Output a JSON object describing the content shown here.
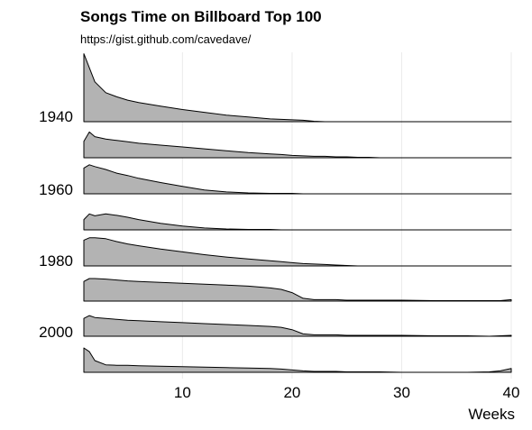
{
  "chart_data": {
    "type": "area",
    "subtype": "ridgeline-density",
    "title": "Songs Time on Billboard Top 100",
    "subtitle": "https://gist.github.com/cavedave/",
    "xlabel": "Weeks",
    "ylabel": "",
    "xlim": [
      1,
      40
    ],
    "x_ticks": [
      "10",
      "20",
      "30",
      "40"
    ],
    "y_tick_labels": [
      "1940",
      "1960",
      "1980",
      "2000"
    ],
    "grid": "vertical",
    "fill_color": "#b3b3b3",
    "line_color": "#000000",
    "x": [
      1,
      1.5,
      2,
      3,
      4,
      5,
      6,
      8,
      10,
      12,
      14,
      16,
      18,
      19,
      20,
      21,
      22,
      23,
      24,
      25,
      26,
      27,
      28,
      30,
      33,
      36,
      38,
      39,
      40
    ],
    "series": [
      {
        "values": [
          1.45,
          1.15,
          0.85,
          0.62,
          0.53,
          0.46,
          0.41,
          0.33,
          0.26,
          0.2,
          0.14,
          0.1,
          0.06,
          0.05,
          0.04,
          0.03,
          0.01,
          0.0,
          0,
          0,
          0,
          0,
          0,
          0,
          0,
          0,
          0,
          0,
          0
        ]
      },
      {
        "values": [
          0.35,
          0.55,
          0.45,
          0.4,
          0.37,
          0.34,
          0.31,
          0.27,
          0.23,
          0.19,
          0.15,
          0.11,
          0.08,
          0.07,
          0.05,
          0.04,
          0.03,
          0.03,
          0.02,
          0.02,
          0.01,
          0.01,
          0.0,
          0,
          0,
          0,
          0,
          0,
          0
        ]
      },
      {
        "values": [
          0.55,
          0.62,
          0.58,
          0.52,
          0.44,
          0.39,
          0.33,
          0.24,
          0.16,
          0.08,
          0.04,
          0.02,
          0.01,
          0.01,
          0.01,
          0.0,
          0,
          0,
          0,
          0,
          0,
          0,
          0,
          0,
          0,
          0,
          0,
          0,
          0
        ]
      },
      {
        "values": [
          0.22,
          0.34,
          0.3,
          0.34,
          0.31,
          0.27,
          0.22,
          0.14,
          0.08,
          0.04,
          0.02,
          0.01,
          0.01,
          0.0,
          0.0,
          0,
          0,
          0,
          0,
          0,
          0,
          0,
          0,
          0,
          0,
          0,
          0,
          0,
          0
        ]
      },
      {
        "values": [
          0.55,
          0.6,
          0.6,
          0.58,
          0.52,
          0.47,
          0.43,
          0.36,
          0.3,
          0.24,
          0.19,
          0.15,
          0.11,
          0.09,
          0.07,
          0.05,
          0.04,
          0.03,
          0.02,
          0.01,
          0.0,
          0,
          0,
          0,
          0,
          0,
          0,
          0,
          0
        ]
      },
      {
        "values": [
          0.42,
          0.48,
          0.48,
          0.47,
          0.45,
          0.43,
          0.42,
          0.4,
          0.38,
          0.36,
          0.34,
          0.32,
          0.28,
          0.25,
          0.18,
          0.06,
          0.03,
          0.03,
          0.03,
          0.02,
          0.02,
          0.02,
          0.02,
          0.02,
          0.01,
          0.01,
          0.01,
          0.01,
          0.03
        ]
      },
      {
        "values": [
          0.38,
          0.44,
          0.4,
          0.38,
          0.36,
          0.34,
          0.33,
          0.31,
          0.29,
          0.27,
          0.25,
          0.23,
          0.21,
          0.19,
          0.14,
          0.05,
          0.03,
          0.03,
          0.03,
          0.02,
          0.02,
          0.02,
          0.02,
          0.02,
          0.01,
          0.01,
          0.0,
          0.01,
          0.02
        ]
      },
      {
        "values": [
          0.52,
          0.44,
          0.25,
          0.16,
          0.15,
          0.15,
          0.14,
          0.13,
          0.12,
          0.11,
          0.1,
          0.09,
          0.08,
          0.07,
          0.05,
          0.03,
          0.02,
          0.02,
          0.02,
          0.01,
          0.01,
          0.01,
          0.01,
          0.0,
          0.0,
          0.0,
          0.01,
          0.03,
          0.08
        ]
      }
    ]
  }
}
